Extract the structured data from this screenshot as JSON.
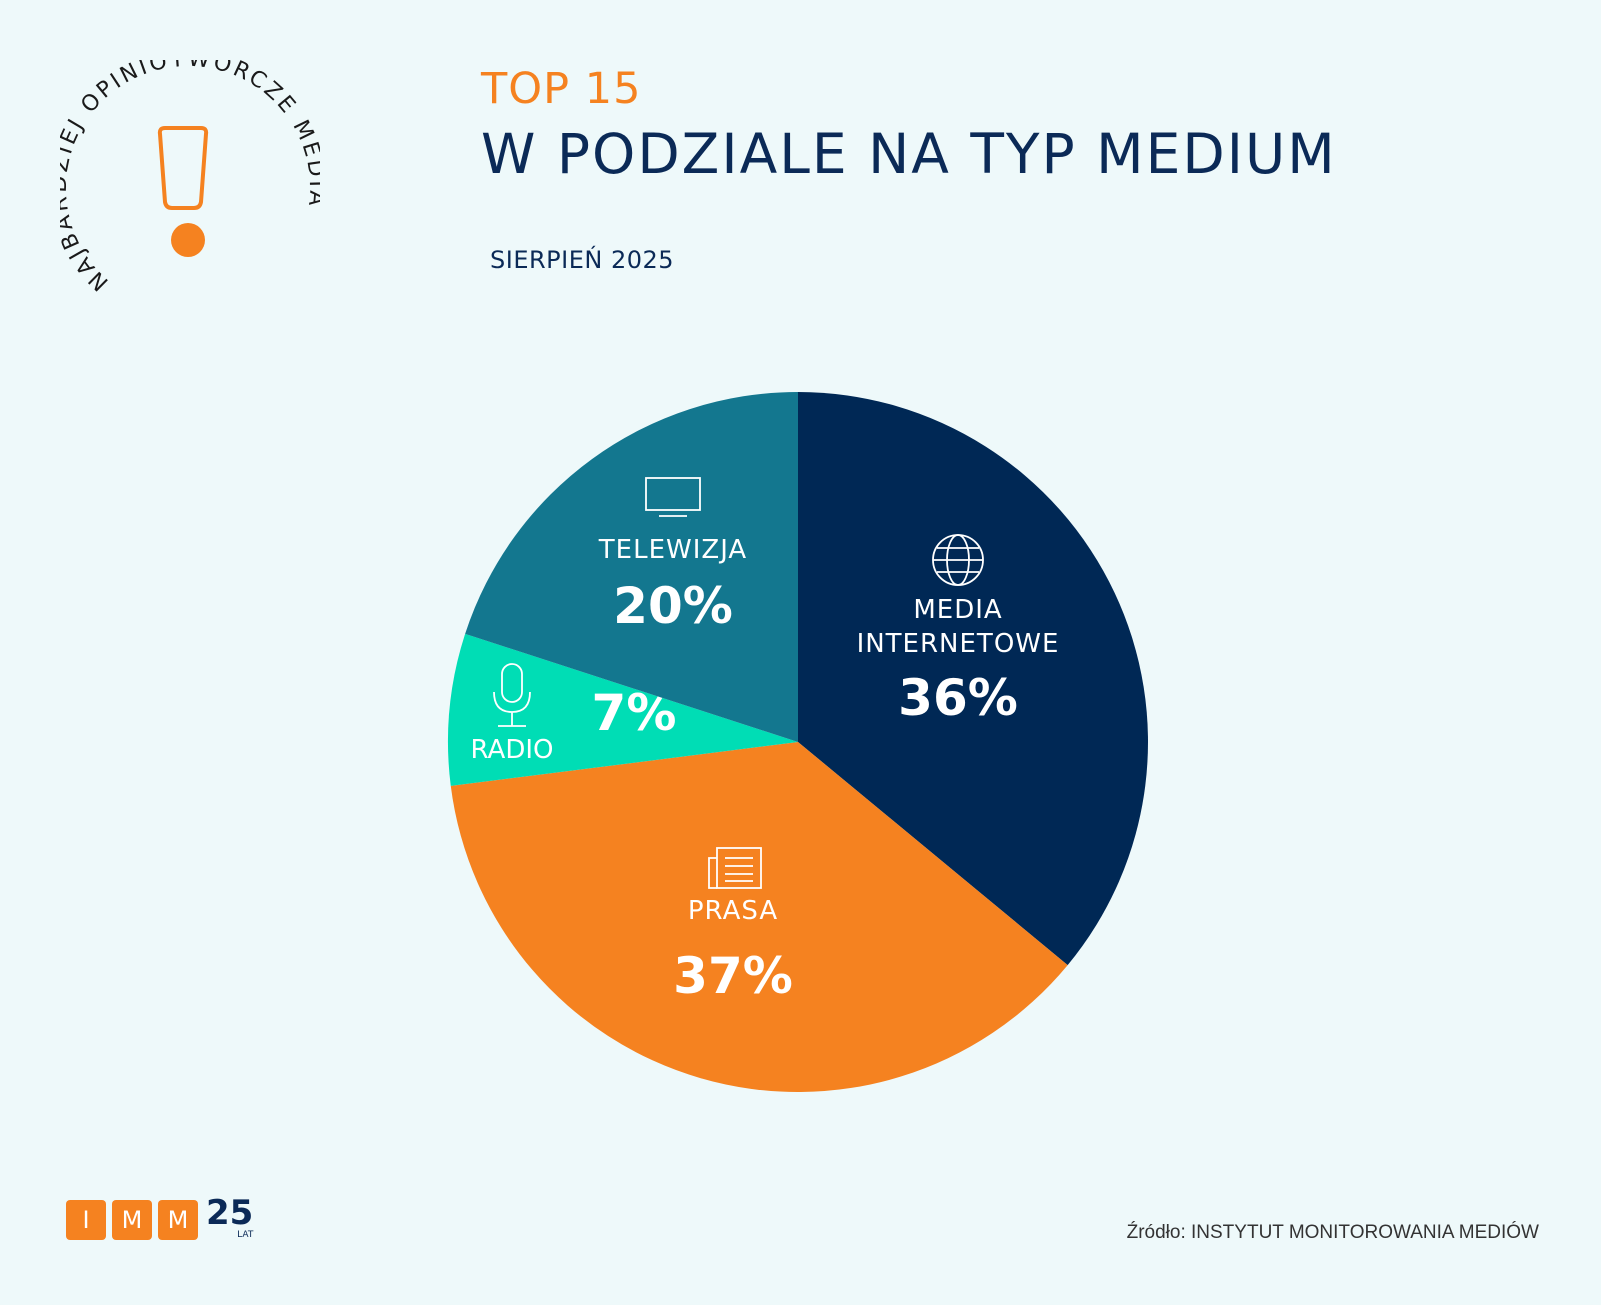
{
  "badge": {
    "text": "NAJBARDZIEJ OPINIOTWÓRCZE MEDIA",
    "icon": "exclamation-icon",
    "color": "#F58220"
  },
  "header": {
    "top": "TOP 15",
    "title": "W PODZIALE NA TYP MEDIUM",
    "period": "SIERPIEŃ 2025"
  },
  "chart_data": {
    "type": "pie",
    "start": "top",
    "direction": "clockwise",
    "slices": [
      {
        "label": [
          "MEDIA",
          "INTERNETOWE"
        ],
        "value": 36,
        "display": "36%",
        "color": "#002855",
        "icon": "globe-icon"
      },
      {
        "label": [
          "PRASA"
        ],
        "value": 37,
        "display": "37%",
        "color": "#F58220",
        "icon": "newspaper-icon"
      },
      {
        "label": [
          "RADIO"
        ],
        "value": 7,
        "display": "7%",
        "color": "#00DDB5",
        "icon": "microphone-icon"
      },
      {
        "label": [
          "TELEWIZJA"
        ],
        "value": 20,
        "display": "20%",
        "color": "#13778F",
        "icon": "tv-icon"
      }
    ]
  },
  "footer": {
    "logo_letters": [
      "I",
      "M",
      "M"
    ],
    "logo_years": "25",
    "logo_lat": "LAT",
    "source": "Źródło: INSTYTUT MONITOROWANIA MEDIÓW"
  }
}
